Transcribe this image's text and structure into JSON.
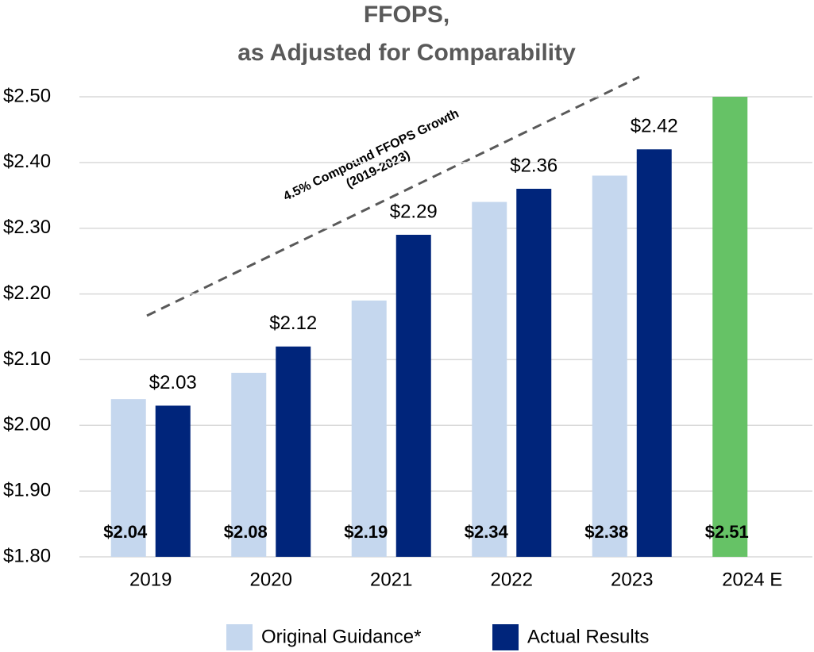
{
  "chart_data": {
    "type": "bar",
    "title": [
      "FFOPS,",
      "as Adjusted for Comparability"
    ],
    "categories": [
      "2019",
      "2020",
      "2021",
      "2022",
      "2023",
      "2024 E"
    ],
    "series": [
      {
        "name": "Original Guidance*",
        "color": "#c5d7ee",
        "colors": [
          "#c5d7ee",
          "#c5d7ee",
          "#c5d7ee",
          "#c5d7ee",
          "#c5d7ee",
          "#66c266"
        ],
        "values": [
          2.04,
          2.08,
          2.19,
          2.34,
          2.38,
          2.51
        ],
        "value_labels": [
          "$2.04",
          "$2.08",
          "$2.19",
          "$2.34",
          "$2.38",
          "$2.51"
        ]
      },
      {
        "name": "Actual Results",
        "color": "#00257b",
        "values": [
          2.03,
          2.12,
          2.29,
          2.36,
          2.42,
          null
        ],
        "value_labels": [
          "$2.03",
          "$2.12",
          "$2.29",
          "$2.36",
          "$2.42",
          null
        ]
      }
    ],
    "ylim": [
      1.8,
      2.5
    ],
    "yticks": [
      {
        "value": 1.8,
        "label": "$1.80"
      },
      {
        "value": 1.9,
        "label": "$1.90"
      },
      {
        "value": 2.0,
        "label": "$2.00"
      },
      {
        "value": 2.1,
        "label": "$2.10"
      },
      {
        "value": 2.2,
        "label": "$2.20"
      },
      {
        "value": 2.3,
        "label": "$2.30"
      },
      {
        "value": 2.4,
        "label": "$2.40"
      },
      {
        "value": 2.5,
        "label": "$2.50"
      }
    ],
    "grid": true,
    "legend": "bottom",
    "annotation": [
      "4.5% Compound FFOPS Growth",
      "(2019-2023)"
    ]
  }
}
